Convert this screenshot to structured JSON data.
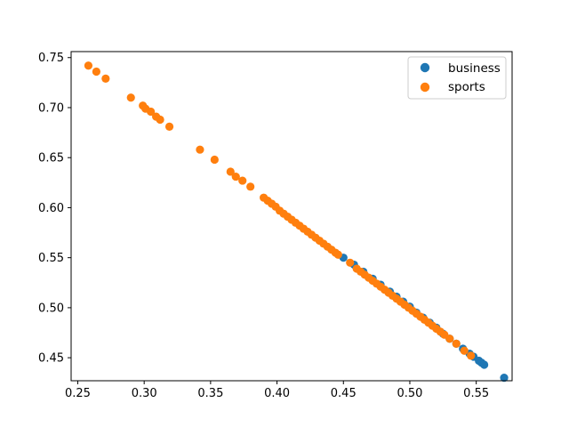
{
  "chart_data": {
    "type": "scatter",
    "title": "",
    "xlabel": "",
    "ylabel": "",
    "xlim": [
      0.245,
      0.577
    ],
    "ylim": [
      0.427,
      0.756
    ],
    "xticks": [
      0.25,
      0.3,
      0.35,
      0.4,
      0.45,
      0.5,
      0.55
    ],
    "yticks": [
      0.45,
      0.5,
      0.55,
      0.6,
      0.65,
      0.7,
      0.75
    ],
    "grid": false,
    "legend_position": "top-right",
    "series": [
      {
        "name": "business",
        "color": "#1f77b4",
        "x": [
          0.45,
          0.458,
          0.465,
          0.472,
          0.478,
          0.485,
          0.49,
          0.495,
          0.5,
          0.505,
          0.51,
          0.515,
          0.52,
          0.525,
          0.53,
          0.535,
          0.54,
          0.545,
          0.548,
          0.552,
          0.554,
          0.556,
          0.571
        ],
        "y": [
          0.55,
          0.543,
          0.536,
          0.529,
          0.523,
          0.516,
          0.511,
          0.506,
          0.501,
          0.495,
          0.49,
          0.485,
          0.48,
          0.474,
          0.469,
          0.464,
          0.459,
          0.454,
          0.451,
          0.447,
          0.445,
          0.443,
          0.43
        ]
      },
      {
        "name": "sports",
        "color": "#ff7f0e",
        "x": [
          0.258,
          0.264,
          0.271,
          0.29,
          0.299,
          0.301,
          0.305,
          0.309,
          0.312,
          0.319,
          0.342,
          0.353,
          0.365,
          0.369,
          0.374,
          0.38,
          0.39,
          0.393,
          0.396,
          0.399,
          0.402,
          0.405,
          0.408,
          0.411,
          0.414,
          0.417,
          0.42,
          0.423,
          0.426,
          0.429,
          0.432,
          0.435,
          0.438,
          0.441,
          0.444,
          0.446,
          0.455,
          0.46,
          0.463,
          0.466,
          0.469,
          0.472,
          0.475,
          0.478,
          0.481,
          0.484,
          0.487,
          0.49,
          0.493,
          0.496,
          0.499,
          0.502,
          0.505,
          0.508,
          0.511,
          0.514,
          0.517,
          0.52,
          0.523,
          0.526,
          0.53,
          0.535,
          0.541,
          0.546
        ],
        "y": [
          0.742,
          0.736,
          0.729,
          0.71,
          0.702,
          0.699,
          0.696,
          0.691,
          0.688,
          0.681,
          0.658,
          0.648,
          0.636,
          0.631,
          0.627,
          0.621,
          0.61,
          0.607,
          0.604,
          0.601,
          0.597,
          0.594,
          0.591,
          0.588,
          0.585,
          0.582,
          0.579,
          0.576,
          0.573,
          0.57,
          0.567,
          0.564,
          0.561,
          0.558,
          0.555,
          0.553,
          0.545,
          0.539,
          0.536,
          0.533,
          0.53,
          0.527,
          0.524,
          0.521,
          0.518,
          0.515,
          0.512,
          0.509,
          0.506,
          0.503,
          0.5,
          0.497,
          0.494,
          0.491,
          0.488,
          0.485,
          0.482,
          0.479,
          0.476,
          0.473,
          0.469,
          0.464,
          0.457,
          0.452
        ]
      }
    ]
  }
}
